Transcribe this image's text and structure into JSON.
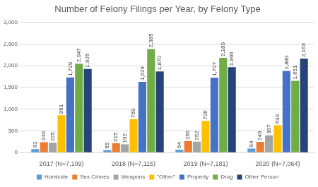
{
  "chart_data": {
    "type": "bar",
    "title": "Number of Felony Filings per Year, by Felony Type",
    "categories": [
      "2017 (N=7,109)",
      "2018 (N=7,115)",
      "2019 (N=7,181)",
      "2020 (N=7,064)"
    ],
    "series": [
      {
        "name": "Homicide",
        "color": "#5B9BD5",
        "values": [
          81,
          55,
          64,
          94
        ]
      },
      {
        "name": "Sex Crimes",
        "color": "#ED7D31",
        "values": [
          240,
          215,
          266,
          249
        ]
      },
      {
        "name": "Weapons",
        "color": "#A5A5A5",
        "values": [
          225,
          192,
          252,
          397
        ]
      },
      {
        "name": "\"Other\"",
        "color": "#FFC000",
        "values": [
          861,
          769,
          726,
          630
        ]
      },
      {
        "name": "Property",
        "color": "#4472C4",
        "values": [
          1729,
          1629,
          1727,
          1880
        ],
        "value_labels": [
          "1,729",
          "1,629",
          "1,727",
          "1,880"
        ]
      },
      {
        "name": "Drug",
        "color": "#70AD47",
        "values": [
          2047,
          2385,
          2180,
          1651
        ],
        "value_labels": [
          "2,047",
          "2,385",
          "2,180",
          "1,651"
        ]
      },
      {
        "name": "Other Person",
        "color": "#264478",
        "values": [
          1926,
          1870,
          1966,
          2163
        ],
        "value_labels": [
          "1,926",
          "1,870",
          "1,966",
          "2,163"
        ]
      }
    ],
    "ylim": [
      0,
      3000
    ],
    "yticks": [
      0,
      500,
      {
        "value": 1000,
        "label": "1,000"
      },
      {
        "value": 1500,
        "label": "1,500"
      },
      {
        "value": 2000,
        "label": "2,000"
      },
      {
        "value": 2500,
        "label": "2,500"
      },
      {
        "value": 3000,
        "label": "3,000"
      }
    ],
    "grid": true,
    "legend": "bottom",
    "data_labels": true
  }
}
